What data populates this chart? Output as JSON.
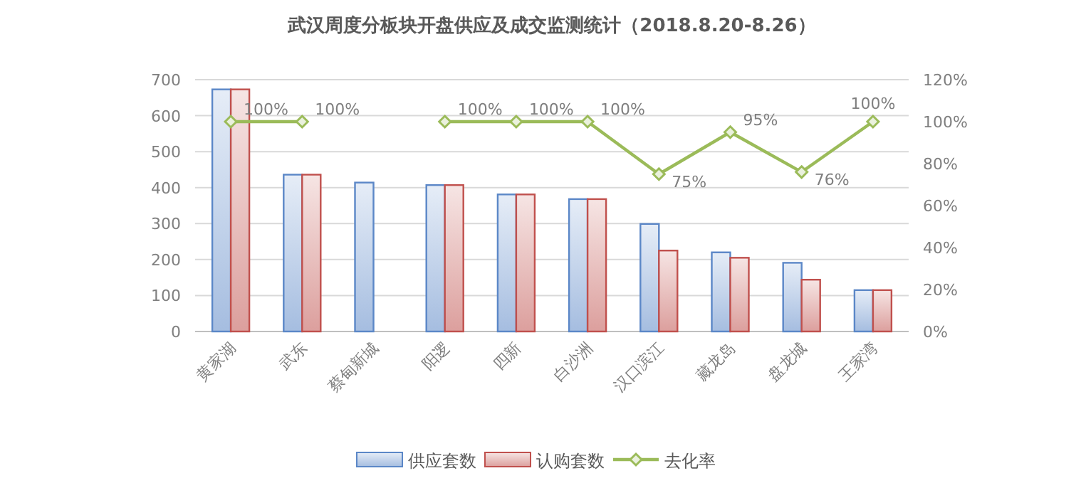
{
  "chart_data": {
    "type": "bar",
    "title": "武汉周度分板块开盘供应及成交监测统计（2018.8.20-8.26）",
    "categories": [
      "黄家湖",
      "武东",
      "蔡甸新城",
      "阳逻",
      "四新",
      "白沙洲",
      "汉口滨江",
      "藏龙岛",
      "盘龙城",
      "王家湾"
    ],
    "series": [
      {
        "name": "供应套数",
        "color": "#5b87c7",
        "values": [
          673,
          436,
          414,
          407,
          381,
          368,
          299,
          220,
          191,
          115
        ]
      },
      {
        "name": "认购套数",
        "color": "#c0504d",
        "values": [
          673,
          436,
          null,
          407,
          381,
          368,
          225,
          205,
          144,
          115
        ]
      },
      {
        "name": "去化率",
        "type": "line",
        "axis": "y2",
        "color": "#9bbb59",
        "marker": "diamond",
        "values": [
          100,
          100,
          null,
          100,
          100,
          100,
          75,
          95,
          76,
          100
        ],
        "value_labels": [
          "100%",
          "100%",
          null,
          "100%",
          "100%",
          "100%",
          "75%",
          "95%",
          "76%",
          "100%"
        ]
      }
    ],
    "ylim": [
      0,
      700
    ],
    "yticks": [
      0,
      100,
      200,
      300,
      400,
      500,
      600,
      700
    ],
    "y2lim": [
      0,
      120
    ],
    "y2ticks": [
      {
        "value": 0,
        "label": "0%"
      },
      {
        "value": 20,
        "label": "20%"
      },
      {
        "value": 40,
        "label": "40%"
      },
      {
        "value": 60,
        "label": "60%"
      },
      {
        "value": 80,
        "label": "80%"
      },
      {
        "value": 100,
        "label": "100%"
      },
      {
        "value": 120,
        "label": "120%"
      }
    ],
    "grid": "y",
    "legend": "bottom"
  }
}
